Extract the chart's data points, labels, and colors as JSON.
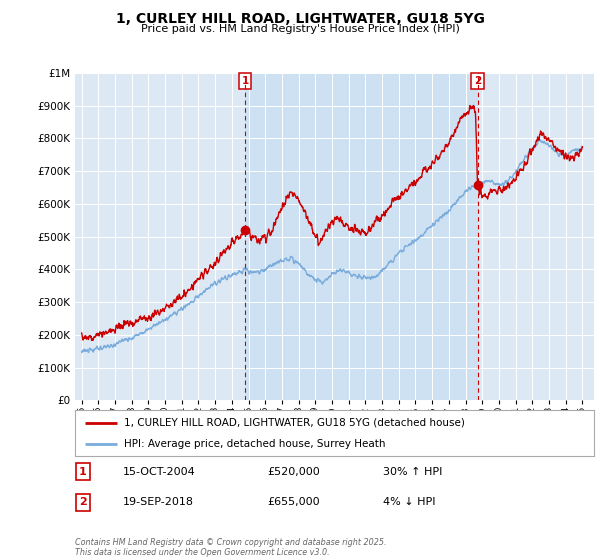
{
  "title": "1, CURLEY HILL ROAD, LIGHTWATER, GU18 5YG",
  "subtitle": "Price paid vs. HM Land Registry's House Price Index (HPI)",
  "legend_line1": "1, CURLEY HILL ROAD, LIGHTWATER, GU18 5YG (detached house)",
  "legend_line2": "HPI: Average price, detached house, Surrey Heath",
  "annotation1_date": "15-OCT-2004",
  "annotation1_price": "£520,000",
  "annotation1_hpi": "30% ↑ HPI",
  "annotation2_date": "19-SEP-2018",
  "annotation2_price": "£655,000",
  "annotation2_hpi": "4% ↓ HPI",
  "footer": "Contains HM Land Registry data © Crown copyright and database right 2025.\nThis data is licensed under the Open Government Licence v3.0.",
  "sale1_year": 2004.79,
  "sale1_price": 520000,
  "sale2_year": 2018.72,
  "sale2_price": 655000,
  "red_color": "#cc0000",
  "blue_color": "#7aacdc",
  "bg_color": "#dce9f5",
  "shade_color": "#c5dcf0",
  "ylim_min": 0,
  "ylim_max": 1000000,
  "hpi_keypoints": [
    [
      1995.0,
      148000
    ],
    [
      1996.0,
      158000
    ],
    [
      1997.0,
      172000
    ],
    [
      1998.0,
      192000
    ],
    [
      1999.0,
      218000
    ],
    [
      2000.0,
      248000
    ],
    [
      2001.0,
      278000
    ],
    [
      2002.0,
      320000
    ],
    [
      2003.0,
      358000
    ],
    [
      2004.0,
      385000
    ],
    [
      2004.79,
      398000
    ],
    [
      2005.0,
      395000
    ],
    [
      2005.5,
      388000
    ],
    [
      2006.0,
      400000
    ],
    [
      2006.5,
      415000
    ],
    [
      2007.0,
      428000
    ],
    [
      2007.5,
      435000
    ],
    [
      2008.0,
      415000
    ],
    [
      2008.5,
      390000
    ],
    [
      2009.0,
      368000
    ],
    [
      2009.5,
      360000
    ],
    [
      2010.0,
      385000
    ],
    [
      2010.5,
      398000
    ],
    [
      2011.0,
      388000
    ],
    [
      2011.5,
      378000
    ],
    [
      2012.0,
      372000
    ],
    [
      2012.5,
      375000
    ],
    [
      2013.0,
      395000
    ],
    [
      2013.5,
      420000
    ],
    [
      2014.0,
      448000
    ],
    [
      2014.5,
      470000
    ],
    [
      2015.0,
      488000
    ],
    [
      2015.5,
      510000
    ],
    [
      2016.0,
      535000
    ],
    [
      2016.5,
      558000
    ],
    [
      2017.0,
      580000
    ],
    [
      2017.5,
      610000
    ],
    [
      2018.0,
      638000
    ],
    [
      2018.5,
      655000
    ],
    [
      2018.72,
      660000
    ],
    [
      2019.0,
      665000
    ],
    [
      2019.5,
      670000
    ],
    [
      2020.0,
      658000
    ],
    [
      2020.5,
      668000
    ],
    [
      2021.0,
      698000
    ],
    [
      2021.5,
      738000
    ],
    [
      2022.0,
      768000
    ],
    [
      2022.5,
      795000
    ],
    [
      2023.0,
      778000
    ],
    [
      2023.5,
      755000
    ],
    [
      2024.0,
      748000
    ],
    [
      2024.5,
      762000
    ],
    [
      2025.0,
      772000
    ]
  ],
  "red_keypoints": [
    [
      1995.0,
      190000
    ],
    [
      1995.5,
      192000
    ],
    [
      1996.0,
      198000
    ],
    [
      1996.5,
      210000
    ],
    [
      1997.0,
      218000
    ],
    [
      1997.5,
      228000
    ],
    [
      1998.0,
      235000
    ],
    [
      1998.5,
      248000
    ],
    [
      1999.0,
      255000
    ],
    [
      1999.5,
      268000
    ],
    [
      2000.0,
      280000
    ],
    [
      2000.5,
      298000
    ],
    [
      2001.0,
      318000
    ],
    [
      2001.5,
      342000
    ],
    [
      2002.0,
      368000
    ],
    [
      2002.5,
      395000
    ],
    [
      2003.0,
      420000
    ],
    [
      2003.5,
      455000
    ],
    [
      2004.0,
      478000
    ],
    [
      2004.5,
      498000
    ],
    [
      2004.79,
      520000
    ],
    [
      2005.0,
      515000
    ],
    [
      2005.2,
      500000
    ],
    [
      2005.5,
      488000
    ],
    [
      2006.0,
      495000
    ],
    [
      2006.3,
      508000
    ],
    [
      2006.6,
      540000
    ],
    [
      2007.0,
      590000
    ],
    [
      2007.3,
      620000
    ],
    [
      2007.5,
      635000
    ],
    [
      2007.8,
      628000
    ],
    [
      2008.0,
      608000
    ],
    [
      2008.3,
      578000
    ],
    [
      2008.6,
      548000
    ],
    [
      2009.0,
      498000
    ],
    [
      2009.3,
      490000
    ],
    [
      2009.5,
      500000
    ],
    [
      2009.8,
      525000
    ],
    [
      2010.0,
      548000
    ],
    [
      2010.3,
      555000
    ],
    [
      2010.6,
      542000
    ],
    [
      2011.0,
      530000
    ],
    [
      2011.3,
      525000
    ],
    [
      2011.6,
      515000
    ],
    [
      2012.0,
      510000
    ],
    [
      2012.3,
      525000
    ],
    [
      2012.6,
      545000
    ],
    [
      2013.0,
      560000
    ],
    [
      2013.3,
      580000
    ],
    [
      2013.6,
      600000
    ],
    [
      2014.0,
      618000
    ],
    [
      2014.3,
      635000
    ],
    [
      2014.6,
      650000
    ],
    [
      2015.0,
      665000
    ],
    [
      2015.3,
      685000
    ],
    [
      2015.6,
      705000
    ],
    [
      2016.0,
      718000
    ],
    [
      2016.3,
      742000
    ],
    [
      2016.6,
      762000
    ],
    [
      2017.0,
      785000
    ],
    [
      2017.3,
      818000
    ],
    [
      2017.6,
      848000
    ],
    [
      2018.0,
      870000
    ],
    [
      2018.3,
      895000
    ],
    [
      2018.5,
      900000
    ],
    [
      2018.6,
      880000
    ],
    [
      2018.72,
      655000
    ],
    [
      2019.0,
      628000
    ],
    [
      2019.3,
      622000
    ],
    [
      2019.6,
      638000
    ],
    [
      2020.0,
      640000
    ],
    [
      2020.5,
      648000
    ],
    [
      2021.0,
      678000
    ],
    [
      2021.5,
      720000
    ],
    [
      2022.0,
      768000
    ],
    [
      2022.3,
      798000
    ],
    [
      2022.5,
      818000
    ],
    [
      2022.8,
      808000
    ],
    [
      2023.0,
      792000
    ],
    [
      2023.3,
      778000
    ],
    [
      2023.6,
      758000
    ],
    [
      2024.0,
      748000
    ],
    [
      2024.3,
      738000
    ],
    [
      2024.6,
      748000
    ],
    [
      2025.0,
      758000
    ]
  ]
}
